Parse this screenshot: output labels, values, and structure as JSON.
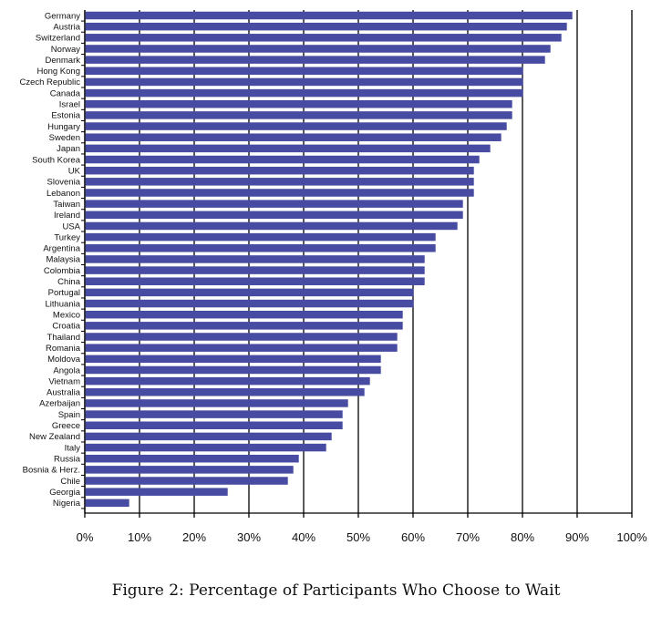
{
  "caption": "Figure 2: Percentage of Participants Who Choose to Wait",
  "chart_data": {
    "type": "bar",
    "orientation": "horizontal",
    "title": "",
    "xlabel": "",
    "ylabel": "",
    "xlim": [
      0,
      100
    ],
    "x_ticks": [
      "0%",
      "10%",
      "20%",
      "30%",
      "40%",
      "50%",
      "60%",
      "70%",
      "80%",
      "90%",
      "100%"
    ],
    "grid": "vertical",
    "bar_color": "#474ba1",
    "categories": [
      "Germany",
      "Austria",
      "Switzerland",
      "Norway",
      "Denmark",
      "Hong Kong",
      "Czech Republic",
      "Canada",
      "Israel",
      "Estonia",
      "Hungary",
      "Sweden",
      "Japan",
      "South Korea",
      "UK",
      "Slovenia",
      "Lebanon",
      "Taiwan",
      "Ireland",
      "USA",
      "Turkey",
      "Argentina",
      "Malaysia",
      "Colombia",
      "China",
      "Portugal",
      "Lithuania",
      "Mexico",
      "Croatia",
      "Thailand",
      "Romania",
      "Moldova",
      "Angola",
      "Vietnam",
      "Australia",
      "Azerbaijan",
      "Spain",
      "Greece",
      "New Zealand",
      "Italy",
      "Russia",
      "Bosnia & Herz.",
      "Chile",
      "Georgia",
      "Nigeria"
    ],
    "values": [
      89,
      88,
      87,
      85,
      84,
      80,
      80,
      80,
      78,
      78,
      77,
      76,
      74,
      72,
      71,
      71,
      71,
      69,
      69,
      68,
      64,
      64,
      62,
      62,
      62,
      60,
      60,
      58,
      58,
      57,
      57,
      54,
      54,
      52,
      51,
      48,
      47,
      47,
      45,
      44,
      39,
      38,
      37,
      26,
      8
    ]
  }
}
